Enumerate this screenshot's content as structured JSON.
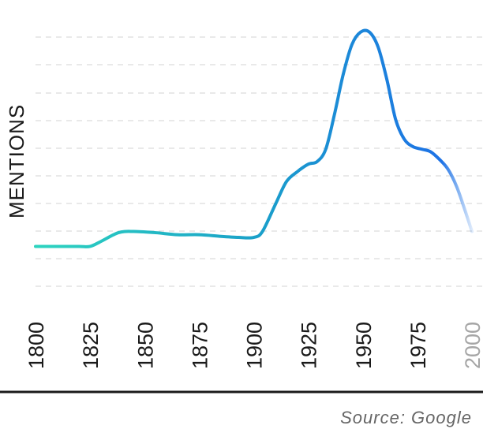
{
  "chart_data": {
    "type": "line",
    "ylabel": "MENTIONS",
    "xlabel": "",
    "x_ticks": [
      "1800",
      "1825",
      "1850",
      "1875",
      "1900",
      "1925",
      "1950",
      "1975",
      "2000"
    ],
    "x_tick_faded": [
      "2000"
    ],
    "xlim": [
      1800,
      2000
    ],
    "ylim": [
      0,
      100
    ],
    "grid": true,
    "series": [
      {
        "x": [
          1800,
          1810,
          1820,
          1825,
          1830,
          1838,
          1845,
          1855,
          1865,
          1875,
          1885,
          1893,
          1900,
          1904,
          1910,
          1915,
          1920,
          1925,
          1929,
          1933,
          1937,
          1941,
          1945,
          1949,
          1953,
          1957,
          1961,
          1965,
          1969,
          1973,
          1977,
          1981,
          1985,
          1989,
          1993,
          1997,
          2000
        ],
        "values": [
          16,
          16,
          16,
          16,
          18,
          21.5,
          22,
          21.5,
          20.7,
          20.7,
          20,
          19.6,
          19.6,
          22,
          33,
          42,
          46,
          49,
          50,
          55,
          69,
          85,
          97,
          102,
          102,
          96,
          83,
          67,
          59,
          56,
          55,
          54,
          51,
          47,
          40,
          30,
          22
        ],
        "gradient": [
          "#2dd4bf",
          "#1aa1c9",
          "#1d72e6"
        ]
      }
    ]
  },
  "source_text": "Source: Google"
}
